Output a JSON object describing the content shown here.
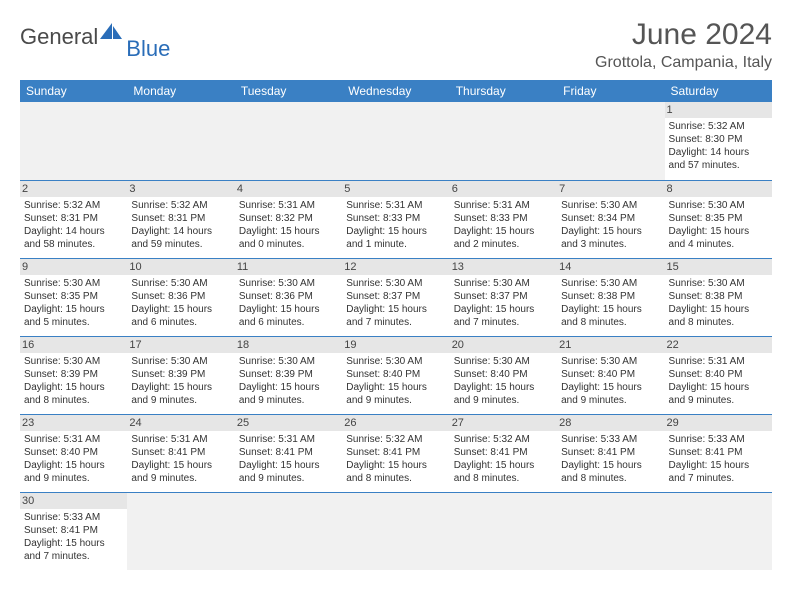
{
  "brand": {
    "main": "General",
    "sub": "Blue"
  },
  "title": "June 2024",
  "location": "Grottola, Campania, Italy",
  "colors": {
    "header_bg": "#3a80c4",
    "header_fg": "#ffffff",
    "daynum_bg": "#e6e6e6",
    "border": "#3a80c4",
    "logo_blue": "#2a6db8",
    "text": "#333333"
  },
  "day_headers": [
    "Sunday",
    "Monday",
    "Tuesday",
    "Wednesday",
    "Thursday",
    "Friday",
    "Saturday"
  ],
  "weeks": [
    [
      null,
      null,
      null,
      null,
      null,
      null,
      {
        "n": "1",
        "sr": "5:32 AM",
        "ss": "8:30 PM",
        "dl": "14 hours and 57 minutes."
      }
    ],
    [
      {
        "n": "2",
        "sr": "5:32 AM",
        "ss": "8:31 PM",
        "dl": "14 hours and 58 minutes."
      },
      {
        "n": "3",
        "sr": "5:32 AM",
        "ss": "8:31 PM",
        "dl": "14 hours and 59 minutes."
      },
      {
        "n": "4",
        "sr": "5:31 AM",
        "ss": "8:32 PM",
        "dl": "15 hours and 0 minutes."
      },
      {
        "n": "5",
        "sr": "5:31 AM",
        "ss": "8:33 PM",
        "dl": "15 hours and 1 minute."
      },
      {
        "n": "6",
        "sr": "5:31 AM",
        "ss": "8:33 PM",
        "dl": "15 hours and 2 minutes."
      },
      {
        "n": "7",
        "sr": "5:30 AM",
        "ss": "8:34 PM",
        "dl": "15 hours and 3 minutes."
      },
      {
        "n": "8",
        "sr": "5:30 AM",
        "ss": "8:35 PM",
        "dl": "15 hours and 4 minutes."
      }
    ],
    [
      {
        "n": "9",
        "sr": "5:30 AM",
        "ss": "8:35 PM",
        "dl": "15 hours and 5 minutes."
      },
      {
        "n": "10",
        "sr": "5:30 AM",
        "ss": "8:36 PM",
        "dl": "15 hours and 6 minutes."
      },
      {
        "n": "11",
        "sr": "5:30 AM",
        "ss": "8:36 PM",
        "dl": "15 hours and 6 minutes."
      },
      {
        "n": "12",
        "sr": "5:30 AM",
        "ss": "8:37 PM",
        "dl": "15 hours and 7 minutes."
      },
      {
        "n": "13",
        "sr": "5:30 AM",
        "ss": "8:37 PM",
        "dl": "15 hours and 7 minutes."
      },
      {
        "n": "14",
        "sr": "5:30 AM",
        "ss": "8:38 PM",
        "dl": "15 hours and 8 minutes."
      },
      {
        "n": "15",
        "sr": "5:30 AM",
        "ss": "8:38 PM",
        "dl": "15 hours and 8 minutes."
      }
    ],
    [
      {
        "n": "16",
        "sr": "5:30 AM",
        "ss": "8:39 PM",
        "dl": "15 hours and 8 minutes."
      },
      {
        "n": "17",
        "sr": "5:30 AM",
        "ss": "8:39 PM",
        "dl": "15 hours and 9 minutes."
      },
      {
        "n": "18",
        "sr": "5:30 AM",
        "ss": "8:39 PM",
        "dl": "15 hours and 9 minutes."
      },
      {
        "n": "19",
        "sr": "5:30 AM",
        "ss": "8:40 PM",
        "dl": "15 hours and 9 minutes."
      },
      {
        "n": "20",
        "sr": "5:30 AM",
        "ss": "8:40 PM",
        "dl": "15 hours and 9 minutes."
      },
      {
        "n": "21",
        "sr": "5:30 AM",
        "ss": "8:40 PM",
        "dl": "15 hours and 9 minutes."
      },
      {
        "n": "22",
        "sr": "5:31 AM",
        "ss": "8:40 PM",
        "dl": "15 hours and 9 minutes."
      }
    ],
    [
      {
        "n": "23",
        "sr": "5:31 AM",
        "ss": "8:40 PM",
        "dl": "15 hours and 9 minutes."
      },
      {
        "n": "24",
        "sr": "5:31 AM",
        "ss": "8:41 PM",
        "dl": "15 hours and 9 minutes."
      },
      {
        "n": "25",
        "sr": "5:31 AM",
        "ss": "8:41 PM",
        "dl": "15 hours and 9 minutes."
      },
      {
        "n": "26",
        "sr": "5:32 AM",
        "ss": "8:41 PM",
        "dl": "15 hours and 8 minutes."
      },
      {
        "n": "27",
        "sr": "5:32 AM",
        "ss": "8:41 PM",
        "dl": "15 hours and 8 minutes."
      },
      {
        "n": "28",
        "sr": "5:33 AM",
        "ss": "8:41 PM",
        "dl": "15 hours and 8 minutes."
      },
      {
        "n": "29",
        "sr": "5:33 AM",
        "ss": "8:41 PM",
        "dl": "15 hours and 7 minutes."
      }
    ],
    [
      {
        "n": "30",
        "sr": "5:33 AM",
        "ss": "8:41 PM",
        "dl": "15 hours and 7 minutes."
      },
      null,
      null,
      null,
      null,
      null,
      null
    ]
  ],
  "labels": {
    "sunrise": "Sunrise:",
    "sunset": "Sunset:",
    "daylight": "Daylight:"
  }
}
